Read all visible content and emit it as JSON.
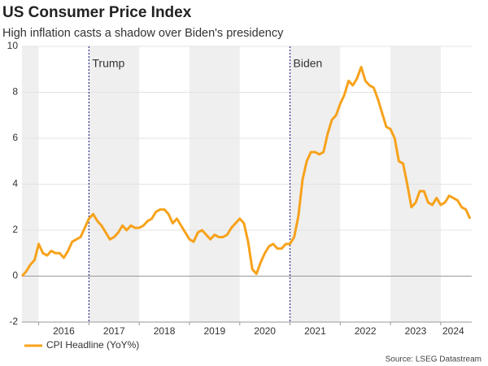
{
  "chart_data": {
    "type": "line",
    "title": "US Consumer Price Index",
    "subtitle": "High inflation casts a shadow over Biden's presidency",
    "source": "Source: LSEG Datastream",
    "x": [
      "2015-09",
      "2015-10",
      "2015-11",
      "2015-12",
      "2016-01",
      "2016-02",
      "2016-03",
      "2016-04",
      "2016-05",
      "2016-06",
      "2016-07",
      "2016-08",
      "2016-09",
      "2016-10",
      "2016-11",
      "2016-12",
      "2017-01",
      "2017-02",
      "2017-03",
      "2017-04",
      "2017-05",
      "2017-06",
      "2017-07",
      "2017-08",
      "2017-09",
      "2017-10",
      "2017-11",
      "2017-12",
      "2018-01",
      "2018-02",
      "2018-03",
      "2018-04",
      "2018-05",
      "2018-06",
      "2018-07",
      "2018-08",
      "2018-09",
      "2018-10",
      "2018-11",
      "2018-12",
      "2019-01",
      "2019-02",
      "2019-03",
      "2019-04",
      "2019-05",
      "2019-06",
      "2019-07",
      "2019-08",
      "2019-09",
      "2019-10",
      "2019-11",
      "2019-12",
      "2020-01",
      "2020-02",
      "2020-03",
      "2020-04",
      "2020-05",
      "2020-06",
      "2020-07",
      "2020-08",
      "2020-09",
      "2020-10",
      "2020-11",
      "2020-12",
      "2021-01",
      "2021-02",
      "2021-03",
      "2021-04",
      "2021-05",
      "2021-06",
      "2021-07",
      "2021-08",
      "2021-09",
      "2021-10",
      "2021-11",
      "2021-12",
      "2022-01",
      "2022-02",
      "2022-03",
      "2022-04",
      "2022-05",
      "2022-06",
      "2022-07",
      "2022-08",
      "2022-09",
      "2022-10",
      "2022-11",
      "2022-12",
      "2023-01",
      "2023-02",
      "2023-03",
      "2023-04",
      "2023-05",
      "2023-06",
      "2023-07",
      "2023-08",
      "2023-09",
      "2023-10",
      "2023-11",
      "2023-12",
      "2024-01",
      "2024-02",
      "2024-03",
      "2024-04",
      "2024-05",
      "2024-06",
      "2024-07",
      "2024-08"
    ],
    "series": [
      {
        "name": "CPI Headline (YoY%)",
        "color": "#f7a21b",
        "values": [
          0.0,
          0.2,
          0.5,
          0.7,
          1.4,
          1.0,
          0.9,
          1.1,
          1.0,
          1.0,
          0.8,
          1.1,
          1.5,
          1.6,
          1.7,
          2.1,
          2.5,
          2.7,
          2.4,
          2.2,
          1.9,
          1.6,
          1.7,
          1.9,
          2.2,
          2.0,
          2.2,
          2.1,
          2.1,
          2.2,
          2.4,
          2.5,
          2.8,
          2.9,
          2.9,
          2.7,
          2.3,
          2.5,
          2.2,
          1.9,
          1.6,
          1.5,
          1.9,
          2.0,
          1.8,
          1.6,
          1.8,
          1.7,
          1.7,
          1.8,
          2.1,
          2.3,
          2.5,
          2.3,
          1.5,
          0.3,
          0.1,
          0.6,
          1.0,
          1.3,
          1.4,
          1.2,
          1.2,
          1.4,
          1.4,
          1.7,
          2.6,
          4.2,
          5.0,
          5.4,
          5.4,
          5.3,
          5.4,
          6.2,
          6.8,
          7.0,
          7.5,
          7.9,
          8.5,
          8.3,
          8.6,
          9.1,
          8.5,
          8.3,
          8.2,
          7.7,
          7.1,
          6.5,
          6.4,
          6.0,
          5.0,
          4.9,
          4.0,
          3.0,
          3.2,
          3.7,
          3.7,
          3.2,
          3.1,
          3.4,
          3.1,
          3.2,
          3.5,
          3.4,
          3.3,
          3.0,
          2.9,
          2.5
        ]
      }
    ],
    "xlim": [
      "2015-09",
      "2024-08"
    ],
    "xticks": [
      {
        "value": "2016-07",
        "label": "2016"
      },
      {
        "value": "2017-07",
        "label": "2017"
      },
      {
        "value": "2018-07",
        "label": "2018"
      },
      {
        "value": "2019-07",
        "label": "2019"
      },
      {
        "value": "2020-07",
        "label": "2020"
      },
      {
        "value": "2021-07",
        "label": "2021"
      },
      {
        "value": "2022-07",
        "label": "2022"
      },
      {
        "value": "2023-07",
        "label": "2023"
      },
      {
        "value": "2024-04",
        "label": "2024"
      }
    ],
    "ylim": [
      -2,
      10
    ],
    "yticks": [
      -2,
      0,
      2,
      4,
      6,
      8,
      10
    ],
    "grid": true,
    "annotations": [
      {
        "label": "Trump",
        "x": "2017-01"
      },
      {
        "label": "Biden",
        "x": "2021-01"
      }
    ],
    "legend": "bottom-left"
  }
}
